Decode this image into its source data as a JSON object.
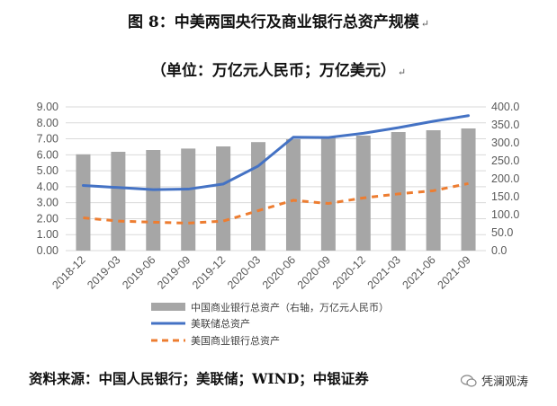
{
  "header": {
    "title": "图 8：中美两国央行及商业银行总资产规模",
    "subtitle": "（单位：万亿元人民币；万亿美元）",
    "return_mark": "↵"
  },
  "footer": {
    "source": "资料来源：中国人民银行；美联储；WIND；中银证券",
    "brand": "凭澜观涛"
  },
  "chart_data": {
    "type": "bar",
    "categories": [
      "2018-12",
      "2019-03",
      "2019-06",
      "2019-09",
      "2019-12",
      "2020-03",
      "2020-06",
      "2020-09",
      "2020-12",
      "2021-03",
      "2021-06",
      "2021-09"
    ],
    "left_axis": {
      "min": 0,
      "max": 9,
      "step": 1,
      "tick_labels": [
        "0.00",
        "1.00",
        "2.00",
        "3.00",
        "4.00",
        "5.00",
        "6.00",
        "7.00",
        "8.00",
        "9.00"
      ]
    },
    "right_axis": {
      "min": 0,
      "max": 400,
      "step": 50,
      "tick_labels": [
        "0.0",
        "50.0",
        "100.0",
        "150.0",
        "200.0",
        "250.0",
        "300.0",
        "350.0",
        "400.0"
      ]
    },
    "grid": true,
    "legend_position": "bottom",
    "series": [
      {
        "name": "中国商业银行总资产（右轴，万亿元人民币）",
        "type": "bar",
        "axis": "right",
        "color": "#a6a6a6",
        "values": [
          268,
          275,
          280,
          284,
          290,
          302,
          310,
          316,
          320,
          330,
          335,
          340
        ]
      },
      {
        "name": "美联储总资产",
        "type": "line",
        "axis": "left",
        "color": "#4472c4",
        "style": "solid",
        "values": [
          4.08,
          3.95,
          3.82,
          3.85,
          4.17,
          5.3,
          7.1,
          7.08,
          7.35,
          7.7,
          8.1,
          8.45
        ]
      },
      {
        "name": "美国商业银行总资产",
        "type": "line",
        "axis": "left",
        "color": "#ed7d31",
        "style": "dashed",
        "values": [
          2.05,
          1.85,
          1.78,
          1.72,
          1.85,
          2.5,
          3.15,
          2.95,
          3.3,
          3.55,
          3.75,
          4.2
        ]
      }
    ]
  }
}
